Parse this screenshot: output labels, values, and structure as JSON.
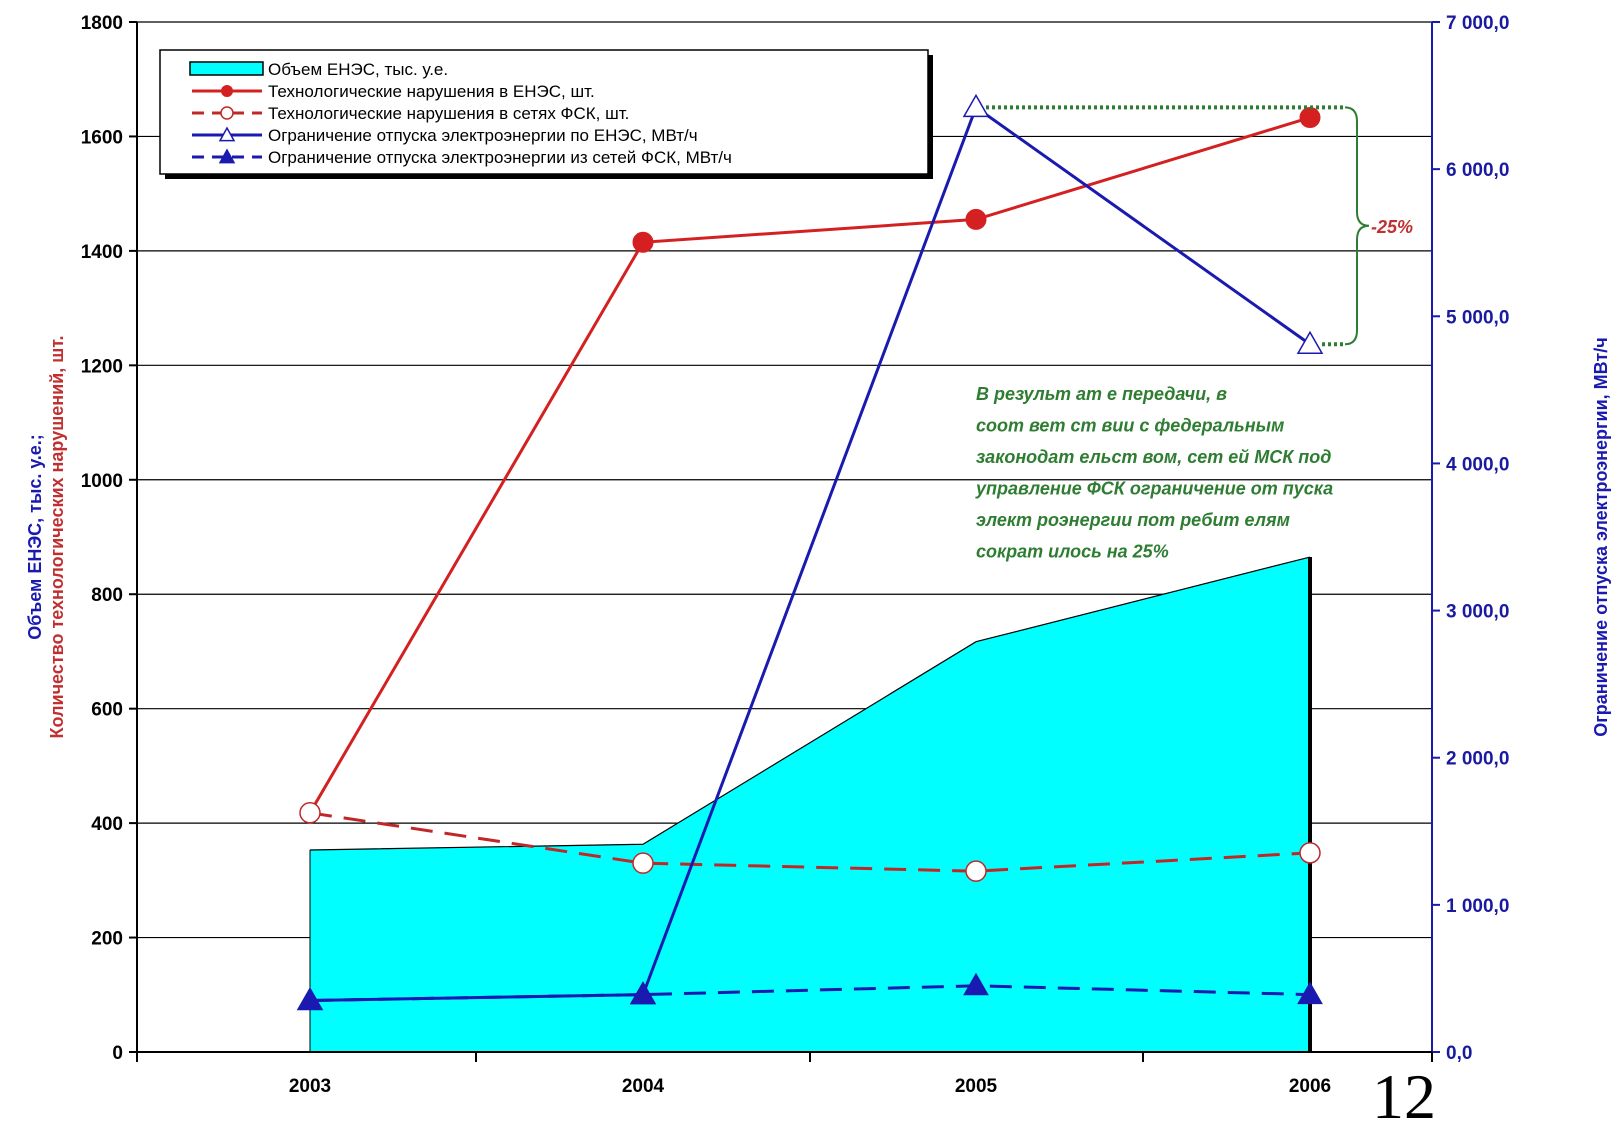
{
  "chart_data": {
    "type": "line",
    "categories": [
      "2003",
      "2004",
      "2005",
      "2006"
    ],
    "left_axis": {
      "label_blue": "Объем ЕНЭС, тыс. у.е.;",
      "label_red": "Количество технологических нарушений, шт.",
      "ylim": [
        0,
        1800
      ],
      "ticks": [
        "0",
        "200",
        "400",
        "600",
        "800",
        "1000",
        "1200",
        "1400",
        "1600",
        "1800"
      ]
    },
    "right_axis": {
      "label": "Ограничение отпуска электроэнергии, МВт/ч",
      "ylim": [
        0,
        7000
      ],
      "ticks": [
        "0,0",
        "1 000,0",
        "2 000,0",
        "3 000,0",
        "4 000,0",
        "5 000,0",
        "6 000,0",
        "7 000,0"
      ]
    },
    "series": [
      {
        "name": "Объем ЕНЭС, тыс. у.е.",
        "kind": "area",
        "axis": "left",
        "color": "#00ffff",
        "values": [
          353,
          363,
          717,
          865
        ]
      },
      {
        "name": "Технологические нарушения в ЕНЭС, шт.",
        "kind": "line",
        "axis": "left",
        "color": "#d42020",
        "marker": "filled-circle",
        "dash": false,
        "values": [
          418,
          1415,
          1455,
          1633
        ]
      },
      {
        "name": "Технологические нарушения в сетях ФСК, шт.",
        "kind": "line",
        "axis": "left",
        "color": "#c02828",
        "marker": "hollow-circle",
        "dash": true,
        "values": [
          418,
          330,
          316,
          348
        ]
      },
      {
        "name": "Ограничение отпуска электроэнергии по ЕНЭС, МВт/ч",
        "kind": "line",
        "axis": "right",
        "color": "#1a1ab0",
        "marker": "hollow-triangle",
        "dash": false,
        "values": [
          350,
          390,
          6420,
          4810
        ]
      },
      {
        "name": "Ограничение отпуска электроэнергии из сетей ФСК, МВт/ч",
        "kind": "line",
        "axis": "right",
        "color": "#1a1ab0",
        "marker": "filled-triangle",
        "dash": true,
        "values": [
          350,
          390,
          450,
          390
        ]
      }
    ],
    "annotations": {
      "percent": "-25%",
      "note_lines": [
        "В результ ат е передачи, в",
        "соот вет ст вии с федеральным",
        "законодат ельст вом, сет ей МСК под",
        "управление ФСК ограничение от пуска",
        "элект роэнергии пот ребит елям",
        "сократ илось на 25%"
      ]
    },
    "grid": true,
    "legend_position": "top-left"
  },
  "page_number": "12"
}
